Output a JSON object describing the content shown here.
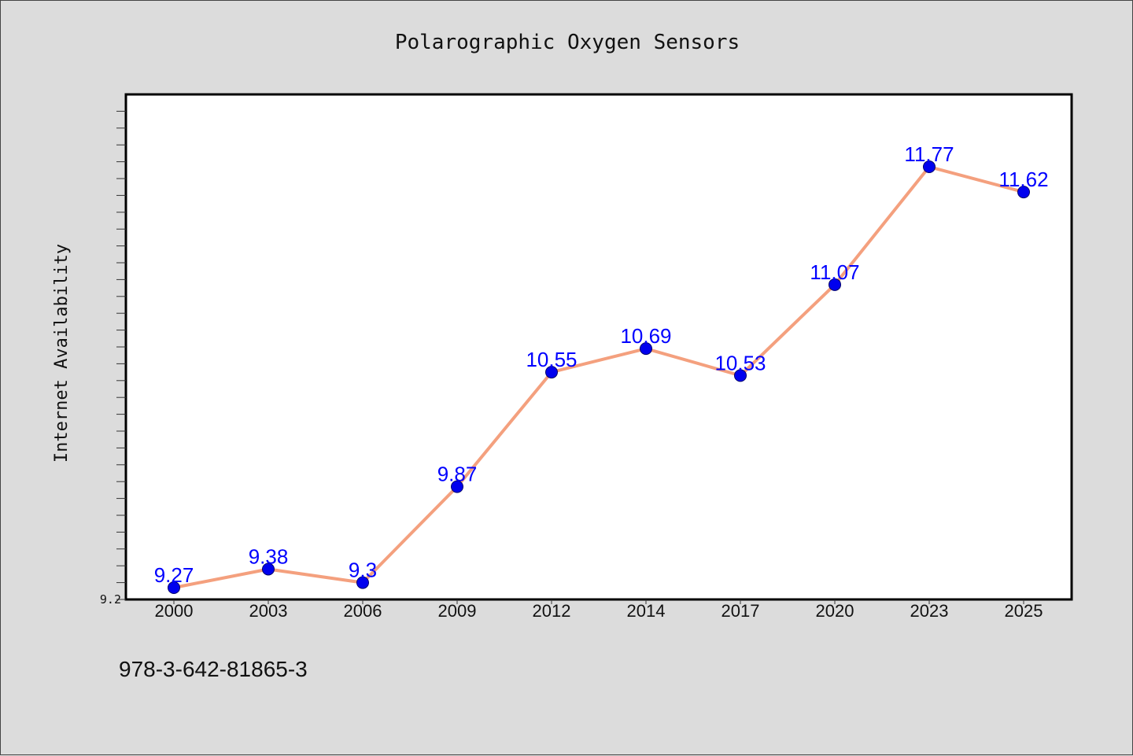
{
  "chart_data": {
    "type": "line",
    "title": "Polarographic Oxygen Sensors",
    "xlabel": "",
    "ylabel": "Internet Availability",
    "categories": [
      "2000",
      "2003",
      "2006",
      "2009",
      "2012",
      "2014",
      "2017",
      "2020",
      "2023",
      "2025"
    ],
    "series": [
      {
        "values": [
          9.27,
          9.38,
          9.3,
          9.87,
          10.55,
          10.69,
          10.53,
          11.07,
          11.77,
          11.62
        ],
        "labels": [
          "9.27",
          "9.38",
          "9.3",
          "9.87",
          "10.55",
          "10.69",
          "10.53",
          "11.07",
          "11.77",
          "11.62"
        ],
        "line_color": "#f4a07e",
        "marker_color": "#0000ee"
      }
    ],
    "yticks_labeled": [
      "9.2"
    ],
    "ylim": [
      9.2,
      12.2
    ],
    "grid": false,
    "legend": false
  },
  "footer": {
    "isbn": "978-3-642-81865-3"
  }
}
